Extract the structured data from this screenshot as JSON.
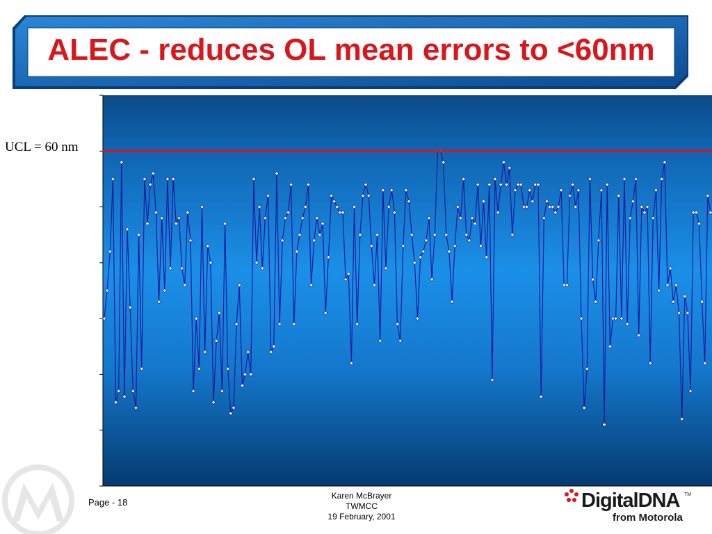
{
  "slide": {
    "title": "ALEC - reduces OL mean errors to <60nm",
    "ucl_label": "UCL = 60 nm",
    "footer": {
      "page": "Page - 18",
      "author": "Karen McBrayer",
      "org": "TWMCC",
      "date": "19 February, 2001"
    },
    "logo": {
      "brand_main": "DigitalDNA",
      "brand_tm": "TM",
      "brand_sub": "from Motorola"
    }
  },
  "colors": {
    "title_red": "#d8161c",
    "frame_blue": "#1f6fc0",
    "plot_top": "#0b4a86",
    "plot_mid": "#1b8fe8",
    "plot_bottom": "#063a70",
    "series_line": "#1a1aa0",
    "ucl_line": "#d8161c"
  },
  "chart_data": {
    "type": "line",
    "title": "",
    "xlabel": "",
    "ylabel": "",
    "ylim": [
      0,
      70
    ],
    "y_grid_step": 10,
    "grid": false,
    "markers": "diamond",
    "ucl": 60,
    "series": [
      {
        "values": [
          30,
          35,
          42,
          55,
          15,
          17,
          58,
          16,
          46,
          32,
          17,
          14,
          45,
          21,
          55,
          47,
          54,
          56,
          49,
          33,
          48,
          35,
          55,
          39,
          55,
          47,
          48,
          39,
          36,
          49,
          44,
          17,
          30,
          21,
          50,
          24,
          43,
          40,
          15,
          26,
          31,
          17,
          47,
          21,
          13,
          14,
          29,
          36,
          18,
          20,
          24,
          20,
          55,
          40,
          50,
          39,
          48,
          52,
          24,
          25,
          56,
          29,
          44,
          48,
          49,
          54,
          29,
          42,
          45,
          48,
          50,
          54,
          36,
          44,
          48,
          45,
          47,
          31,
          41,
          52,
          51,
          50,
          49,
          49,
          37,
          38,
          22,
          50,
          29,
          45,
          52,
          54,
          52,
          43,
          36,
          45,
          26,
          53,
          39,
          50,
          53,
          49,
          29,
          26,
          43,
          53,
          51,
          45,
          40,
          30,
          41,
          42,
          44,
          48,
          37,
          45,
          60,
          60,
          58,
          45,
          42,
          33,
          43,
          50,
          48,
          55,
          45,
          44,
          48,
          47,
          54,
          43,
          51,
          41,
          54,
          19,
          55,
          49,
          54,
          58,
          54,
          57,
          45,
          53,
          54,
          54,
          50,
          50,
          53,
          51,
          54,
          54,
          16,
          48,
          51,
          50,
          50,
          49,
          50,
          53,
          36,
          36,
          52,
          54,
          50,
          53,
          30,
          14,
          21,
          55,
          37,
          33,
          44,
          53,
          11,
          54,
          25,
          30,
          30,
          52,
          30,
          55,
          29,
          48,
          51,
          55,
          27,
          50,
          49,
          50,
          22,
          48,
          53,
          35,
          55,
          58,
          36,
          39,
          33,
          36,
          31,
          12,
          34,
          31,
          17,
          49,
          49,
          47,
          33,
          22,
          52,
          49
        ]
      }
    ]
  }
}
